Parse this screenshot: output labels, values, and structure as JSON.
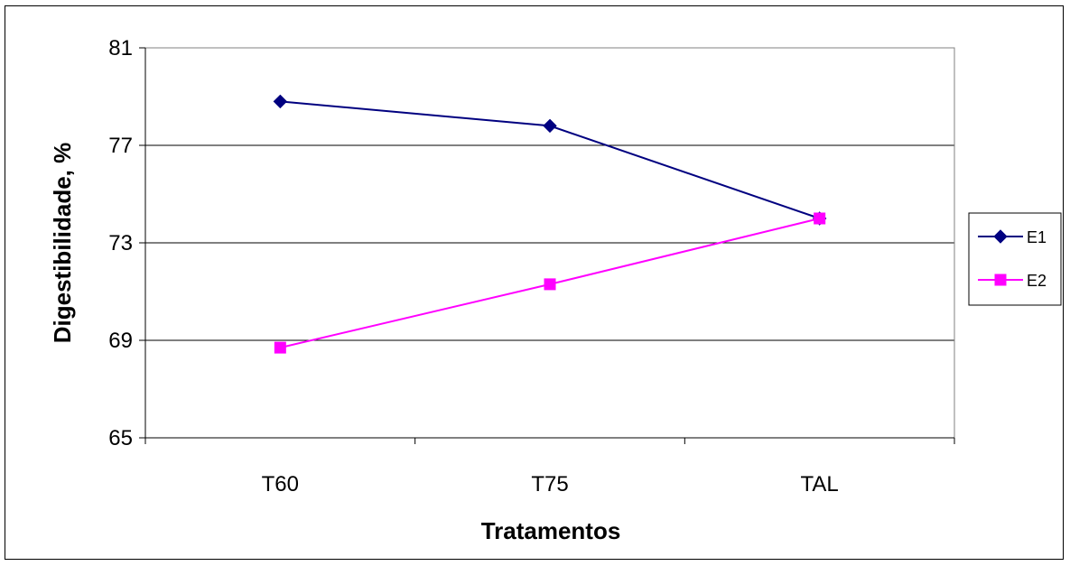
{
  "chart_data": {
    "type": "line",
    "title": "",
    "xlabel": "Tratamentos",
    "ylabel": "Digestibilidade, %",
    "categories": [
      "T60",
      "T75",
      "TAL"
    ],
    "ylim": [
      65,
      81
    ],
    "yticks": [
      65,
      69,
      73,
      77,
      81
    ],
    "grid": true,
    "legend_position": "right",
    "series": [
      {
        "name": "E1",
        "values": [
          78.8,
          77.8,
          74.0
        ],
        "color": "#000080",
        "marker": "diamond"
      },
      {
        "name": "E2",
        "values": [
          68.7,
          71.3,
          74.0
        ],
        "color": "#FF00FF",
        "marker": "square"
      }
    ]
  }
}
